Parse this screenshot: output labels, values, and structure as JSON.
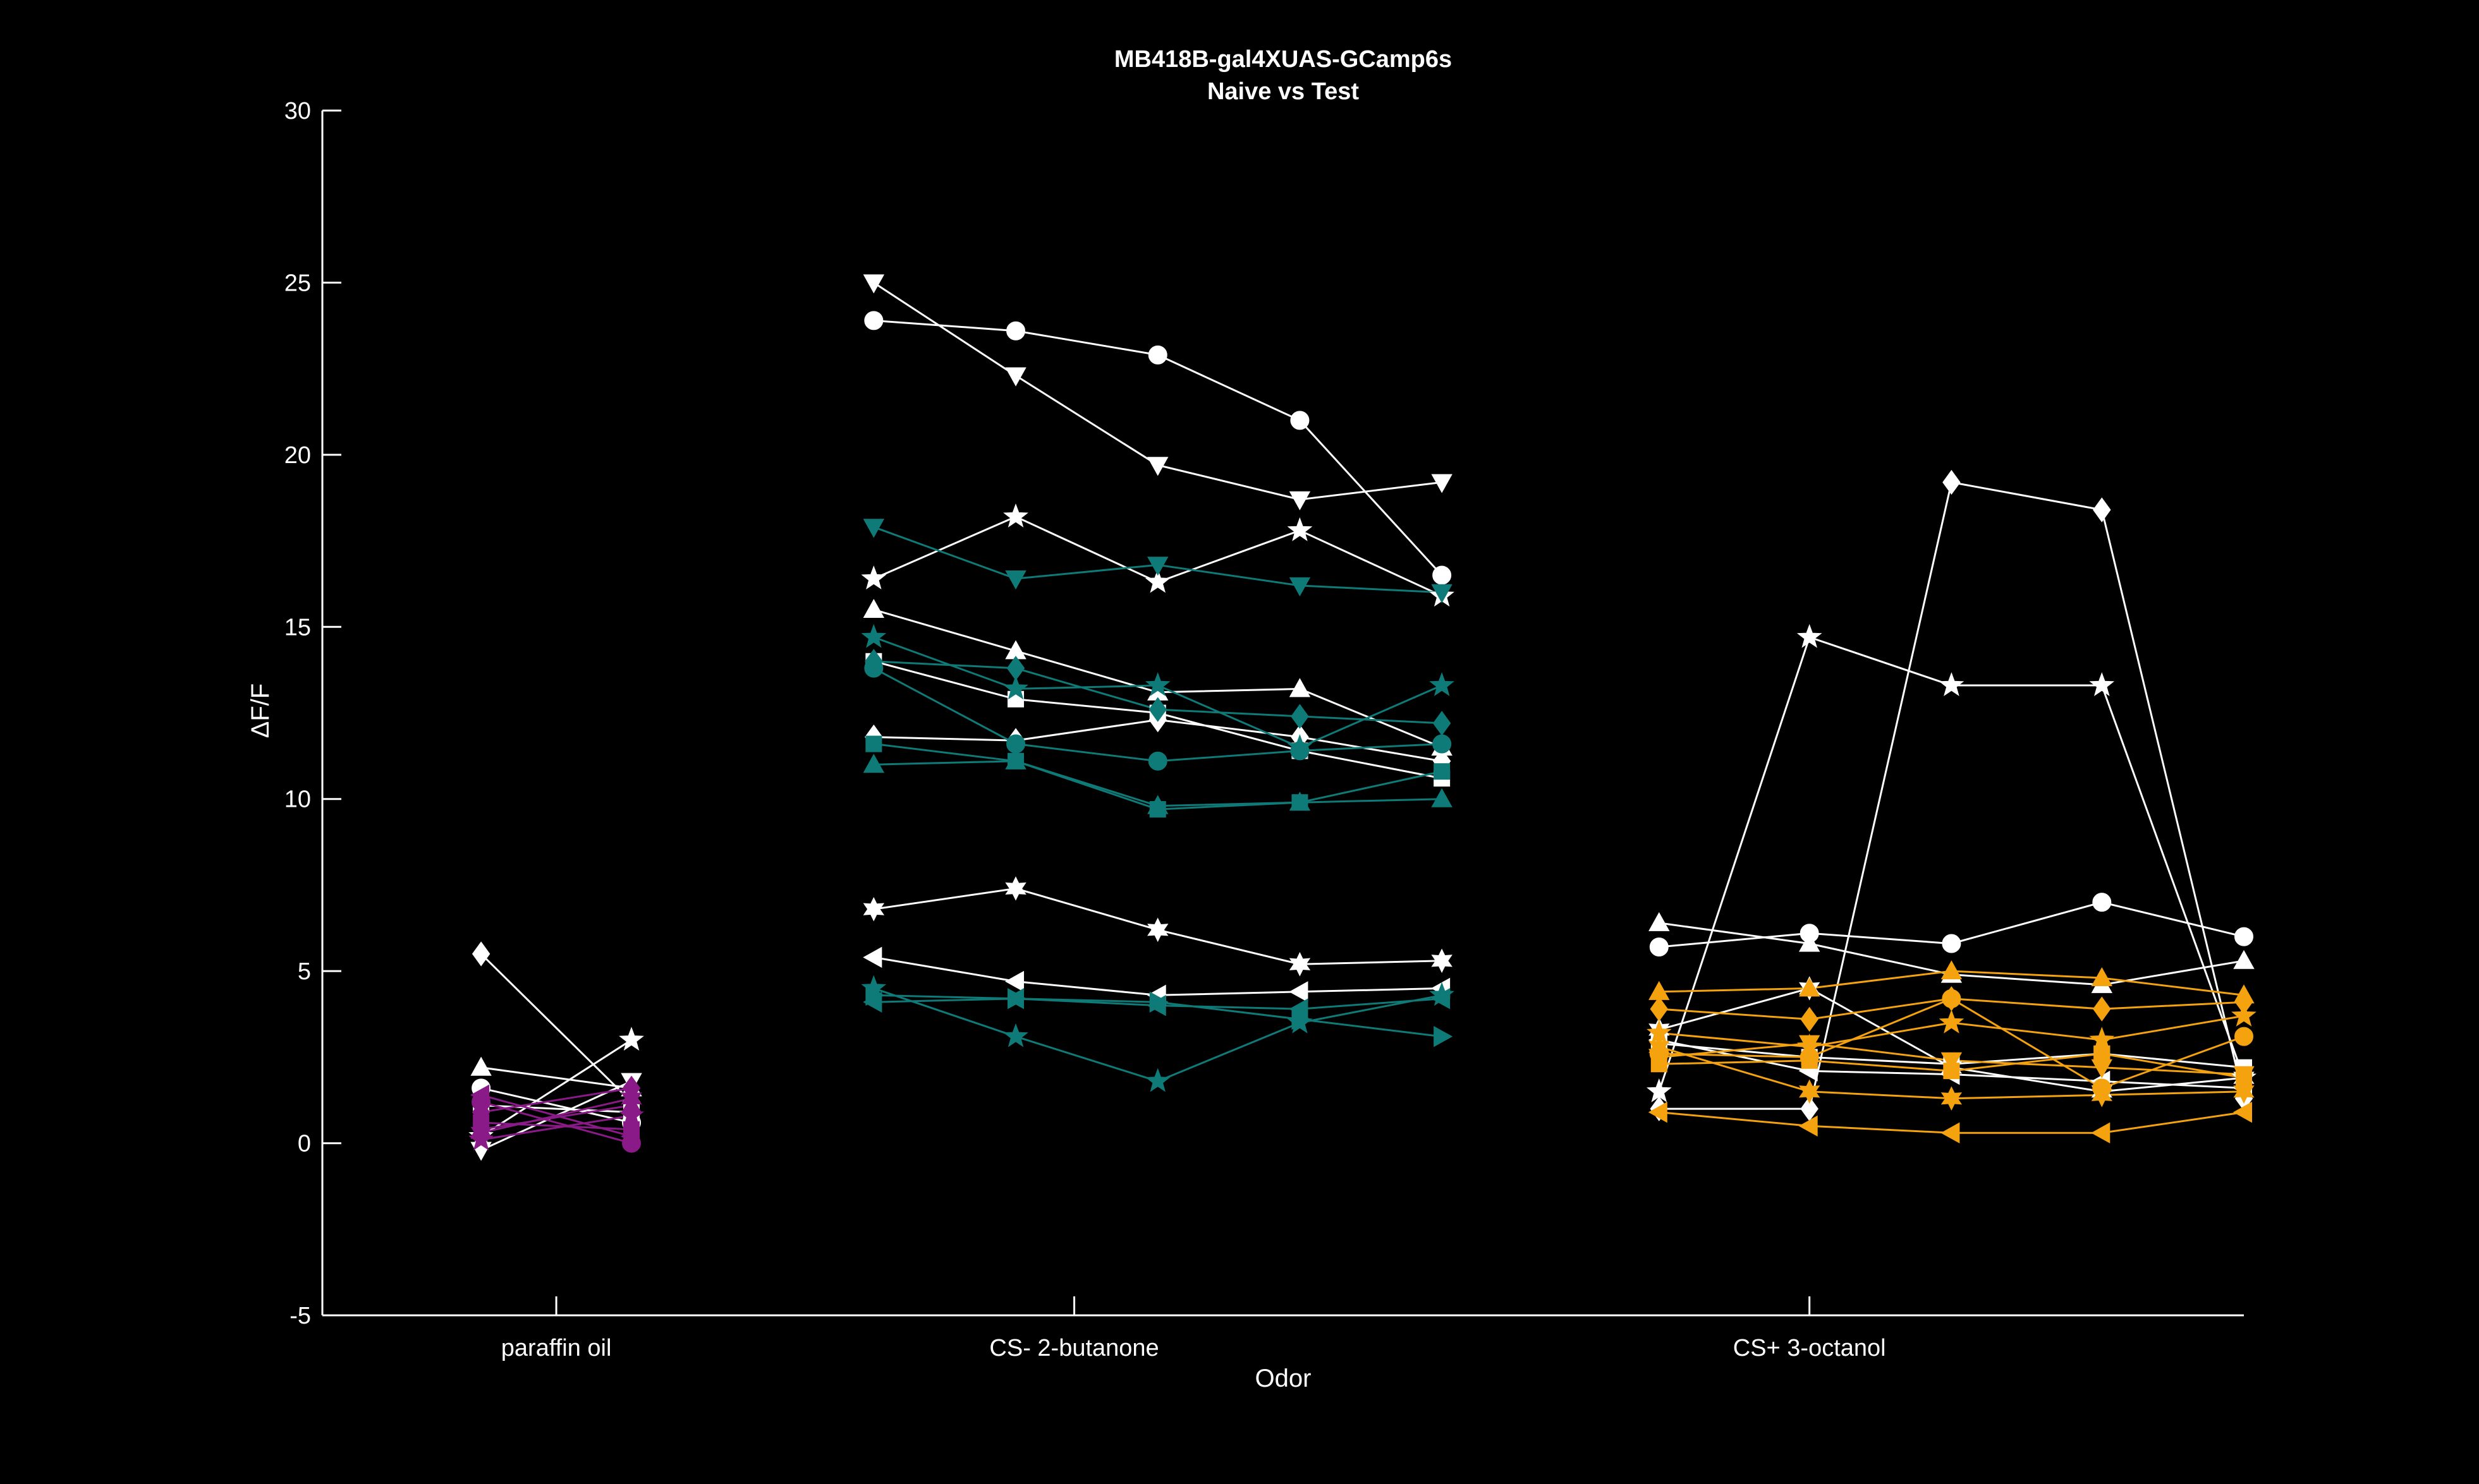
{
  "chart_data": {
    "type": "line",
    "title": "MB418B-gal4XUAS-GCamp6s",
    "subtitle": "Naive vs Test",
    "xlabel": "Odor",
    "ylabel": "ΔF/F",
    "ylim": [
      -5,
      30
    ],
    "yticks": [
      -5,
      0,
      5,
      10,
      15,
      20,
      25,
      30
    ],
    "xlim": [
      0.5,
      12
    ],
    "categories": [
      {
        "label": "paraffin oil",
        "x": 1.9
      },
      {
        "label": "CS- 2-butanone",
        "x": 5.0
      },
      {
        "label": "CS+ 3-octanol",
        "x": 9.4
      }
    ],
    "grid": false,
    "legend": "none",
    "colors": {
      "background": "#000000",
      "axis": "#ffffff",
      "white_series": "#ffffff",
      "paraffin": "#8b1a89",
      "butanone": "#0e7b78",
      "octanol": "#f5a20f"
    },
    "series": [
      {
        "group": "paraffin",
        "color": "#ffffff",
        "marker": "diamond",
        "x": [
          1.45,
          2.35
        ],
        "values": [
          5.5,
          1.2
        ]
      },
      {
        "group": "paraffin",
        "color": "#ffffff",
        "marker": "up",
        "x": [
          1.45,
          2.35
        ],
        "values": [
          2.2,
          1.6
        ]
      },
      {
        "group": "paraffin",
        "color": "#ffffff",
        "marker": "circle",
        "x": [
          1.45,
          2.35
        ],
        "values": [
          1.6,
          0.6
        ]
      },
      {
        "group": "paraffin",
        "color": "#ffffff",
        "marker": "down",
        "x": [
          1.45,
          2.35
        ],
        "values": [
          -0.2,
          1.8
        ]
      },
      {
        "group": "paraffin",
        "color": "#ffffff",
        "marker": "star",
        "x": [
          1.45,
          2.35
        ],
        "values": [
          0.2,
          3.0
        ]
      },
      {
        "group": "paraffin",
        "color": "#ffffff",
        "marker": "square",
        "x": [
          1.45,
          2.35
        ],
        "values": [
          1.1,
          0.9
        ]
      },
      {
        "group": "paraffin",
        "color": "#8b1a89",
        "marker": "circle",
        "x": [
          1.45,
          2.35
        ],
        "values": [
          1.2,
          0.0
        ]
      },
      {
        "group": "paraffin",
        "color": "#8b1a89",
        "marker": "diamond",
        "x": [
          1.45,
          2.35
        ],
        "values": [
          0.9,
          1.6
        ]
      },
      {
        "group": "paraffin",
        "color": "#8b1a89",
        "marker": "up",
        "x": [
          1.45,
          2.35
        ],
        "values": [
          0.4,
          1.1
        ]
      },
      {
        "group": "paraffin",
        "color": "#8b1a89",
        "marker": "square",
        "x": [
          1.45,
          2.35
        ],
        "values": [
          0.6,
          0.4
        ]
      },
      {
        "group": "paraffin",
        "color": "#8b1a89",
        "marker": "star",
        "x": [
          1.45,
          2.35
        ],
        "values": [
          0.1,
          0.8
        ]
      },
      {
        "group": "paraffin",
        "color": "#8b1a89",
        "marker": "left",
        "x": [
          1.45,
          2.35
        ],
        "values": [
          1.4,
          0.2
        ]
      },
      {
        "group": "paraffin",
        "color": "#8b1a89",
        "marker": "hexagram",
        "x": [
          1.45,
          2.35
        ],
        "values": [
          0.3,
          1.3
        ]
      },
      {
        "group": "butanone",
        "color": "#ffffff",
        "marker": "down",
        "x": [
          3.8,
          4.65,
          5.5,
          6.35,
          7.2
        ],
        "values": [
          25.0,
          22.3,
          19.7,
          18.7,
          19.2
        ]
      },
      {
        "group": "butanone",
        "color": "#ffffff",
        "marker": "circle",
        "x": [
          3.8,
          4.65,
          5.5,
          6.35,
          7.2
        ],
        "values": [
          23.9,
          23.6,
          22.9,
          21.0,
          16.5
        ]
      },
      {
        "group": "butanone",
        "color": "#ffffff",
        "marker": "star",
        "x": [
          3.8,
          4.65,
          5.5,
          6.35,
          7.2
        ],
        "values": [
          16.4,
          18.2,
          16.3,
          17.8,
          15.9
        ]
      },
      {
        "group": "butanone",
        "color": "#ffffff",
        "marker": "up",
        "x": [
          3.8,
          4.65,
          5.5,
          6.35,
          7.2
        ],
        "values": [
          15.5,
          14.3,
          13.1,
          13.2,
          11.5
        ]
      },
      {
        "group": "butanone",
        "color": "#ffffff",
        "marker": "square",
        "x": [
          3.8,
          4.65,
          5.5,
          6.35,
          7.2
        ],
        "values": [
          14.0,
          12.9,
          12.5,
          11.4,
          10.6
        ]
      },
      {
        "group": "butanone",
        "color": "#ffffff",
        "marker": "diamond",
        "x": [
          3.8,
          4.65,
          5.5,
          6.35,
          7.2
        ],
        "values": [
          11.8,
          11.7,
          12.3,
          11.8,
          11.1
        ]
      },
      {
        "group": "butanone",
        "color": "#ffffff",
        "marker": "hexagram",
        "x": [
          3.8,
          4.65,
          5.5,
          6.35,
          7.2
        ],
        "values": [
          6.8,
          7.4,
          6.2,
          5.2,
          5.3
        ]
      },
      {
        "group": "butanone",
        "color": "#ffffff",
        "marker": "left",
        "x": [
          3.8,
          4.65,
          5.5,
          6.35,
          7.2
        ],
        "values": [
          5.4,
          4.7,
          4.3,
          4.4,
          4.5
        ]
      },
      {
        "group": "butanone",
        "color": "#0e7b78",
        "marker": "down",
        "x": [
          3.8,
          4.65,
          5.5,
          6.35,
          7.2
        ],
        "values": [
          17.9,
          16.4,
          16.8,
          16.2,
          16.0
        ]
      },
      {
        "group": "butanone",
        "color": "#0e7b78",
        "marker": "star",
        "x": [
          3.8,
          4.65,
          5.5,
          6.35,
          7.2
        ],
        "values": [
          14.7,
          13.2,
          13.3,
          11.5,
          13.3
        ]
      },
      {
        "group": "butanone",
        "color": "#0e7b78",
        "marker": "diamond",
        "x": [
          3.8,
          4.65,
          5.5,
          6.35,
          7.2
        ],
        "values": [
          14.0,
          13.8,
          12.6,
          12.4,
          12.2
        ]
      },
      {
        "group": "butanone",
        "color": "#0e7b78",
        "marker": "circle",
        "x": [
          3.8,
          4.65,
          5.5,
          6.35,
          7.2
        ],
        "values": [
          13.8,
          11.6,
          11.1,
          11.4,
          11.6
        ]
      },
      {
        "group": "butanone",
        "color": "#0e7b78",
        "marker": "square",
        "x": [
          3.8,
          4.65,
          5.5,
          6.35,
          7.2
        ],
        "values": [
          11.6,
          11.1,
          9.7,
          9.9,
          10.8
        ]
      },
      {
        "group": "butanone",
        "color": "#0e7b78",
        "marker": "up",
        "x": [
          3.8,
          4.65,
          5.5,
          6.35,
          7.2
        ],
        "values": [
          11.0,
          11.1,
          9.8,
          9.9,
          10.0
        ]
      },
      {
        "group": "butanone",
        "color": "#0e7b78",
        "marker": "left",
        "x": [
          3.8,
          4.65,
          5.5,
          6.35,
          7.2
        ],
        "values": [
          4.1,
          4.2,
          4.0,
          3.9,
          4.2
        ]
      },
      {
        "group": "butanone",
        "color": "#0e7b78",
        "marker": "star",
        "x": [
          3.8,
          4.65,
          5.5,
          6.35,
          7.2
        ],
        "values": [
          4.5,
          3.1,
          1.8,
          3.5,
          4.3
        ]
      },
      {
        "group": "butanone",
        "color": "#0e7b78",
        "marker": "right",
        "x": [
          3.8,
          4.65,
          5.5,
          6.35,
          7.2
        ],
        "values": [
          4.3,
          4.2,
          4.1,
          3.6,
          3.1
        ]
      },
      {
        "group": "octanol",
        "color": "#ffffff",
        "marker": "diamond",
        "x": [
          8.5,
          9.4,
          10.25,
          11.15,
          12.0
        ],
        "values": [
          1.0,
          1.0,
          19.2,
          18.4,
          1.3
        ]
      },
      {
        "group": "octanol",
        "color": "#ffffff",
        "marker": "star",
        "x": [
          8.5,
          9.4,
          10.25,
          11.15,
          12.0
        ],
        "values": [
          1.5,
          14.7,
          13.3,
          13.3,
          1.9
        ]
      },
      {
        "group": "octanol",
        "color": "#ffffff",
        "marker": "up",
        "x": [
          8.5,
          9.4,
          10.25,
          11.15,
          12.0
        ],
        "values": [
          6.4,
          5.8,
          4.9,
          4.6,
          5.3
        ]
      },
      {
        "group": "octanol",
        "color": "#ffffff",
        "marker": "circle",
        "x": [
          8.5,
          9.4,
          10.25,
          11.15,
          12.0
        ],
        "values": [
          5.7,
          6.1,
          5.8,
          7.0,
          6.0
        ]
      },
      {
        "group": "octanol",
        "color": "#ffffff",
        "marker": "square",
        "x": [
          8.5,
          9.4,
          10.25,
          11.15,
          12.0
        ],
        "values": [
          2.9,
          2.5,
          2.3,
          2.6,
          2.2
        ]
      },
      {
        "group": "octanol",
        "color": "#ffffff",
        "marker": "hexagram",
        "x": [
          8.5,
          9.4,
          10.25,
          11.15,
          12.0
        ],
        "values": [
          3.3,
          4.5,
          2.2,
          1.5,
          1.9
        ]
      },
      {
        "group": "octanol",
        "color": "#ffffff",
        "marker": "left",
        "x": [
          8.5,
          9.4,
          10.25,
          11.15,
          12.0
        ],
        "values": [
          3.0,
          2.1,
          2.0,
          1.8,
          1.6
        ]
      },
      {
        "group": "octanol",
        "color": "#f5a20f",
        "marker": "up",
        "x": [
          8.5,
          9.4,
          10.25,
          11.15,
          12.0
        ],
        "values": [
          4.4,
          4.5,
          5.0,
          4.8,
          4.3
        ]
      },
      {
        "group": "octanol",
        "color": "#f5a20f",
        "marker": "diamond",
        "x": [
          8.5,
          9.4,
          10.25,
          11.15,
          12.0
        ],
        "values": [
          3.9,
          3.6,
          4.2,
          3.9,
          4.1
        ]
      },
      {
        "group": "octanol",
        "color": "#f5a20f",
        "marker": "star",
        "x": [
          8.5,
          9.4,
          10.25,
          11.15,
          12.0
        ],
        "values": [
          3.2,
          2.8,
          3.5,
          3.0,
          3.7
        ]
      },
      {
        "group": "octanol",
        "color": "#f5a20f",
        "marker": "circle",
        "x": [
          8.5,
          9.4,
          10.25,
          11.15,
          12.0
        ],
        "values": [
          2.6,
          2.5,
          4.2,
          1.6,
          3.1
        ]
      },
      {
        "group": "octanol",
        "color": "#f5a20f",
        "marker": "square",
        "x": [
          8.5,
          9.4,
          10.25,
          11.15,
          12.0
        ],
        "values": [
          2.3,
          2.4,
          2.1,
          2.6,
          1.9
        ]
      },
      {
        "group": "octanol",
        "color": "#f5a20f",
        "marker": "hexagram",
        "x": [
          8.5,
          9.4,
          10.25,
          11.15,
          12.0
        ],
        "values": [
          2.8,
          1.5,
          1.3,
          1.4,
          1.5
        ]
      },
      {
        "group": "octanol",
        "color": "#f5a20f",
        "marker": "down",
        "x": [
          8.5,
          9.4,
          10.25,
          11.15,
          12.0
        ],
        "values": [
          2.5,
          2.9,
          2.4,
          2.2,
          2.0
        ]
      },
      {
        "group": "octanol",
        "color": "#f5a20f",
        "marker": "left",
        "x": [
          8.5,
          9.4,
          10.25,
          11.15,
          12.0
        ],
        "values": [
          0.9,
          0.5,
          0.3,
          0.3,
          0.9
        ]
      }
    ]
  }
}
